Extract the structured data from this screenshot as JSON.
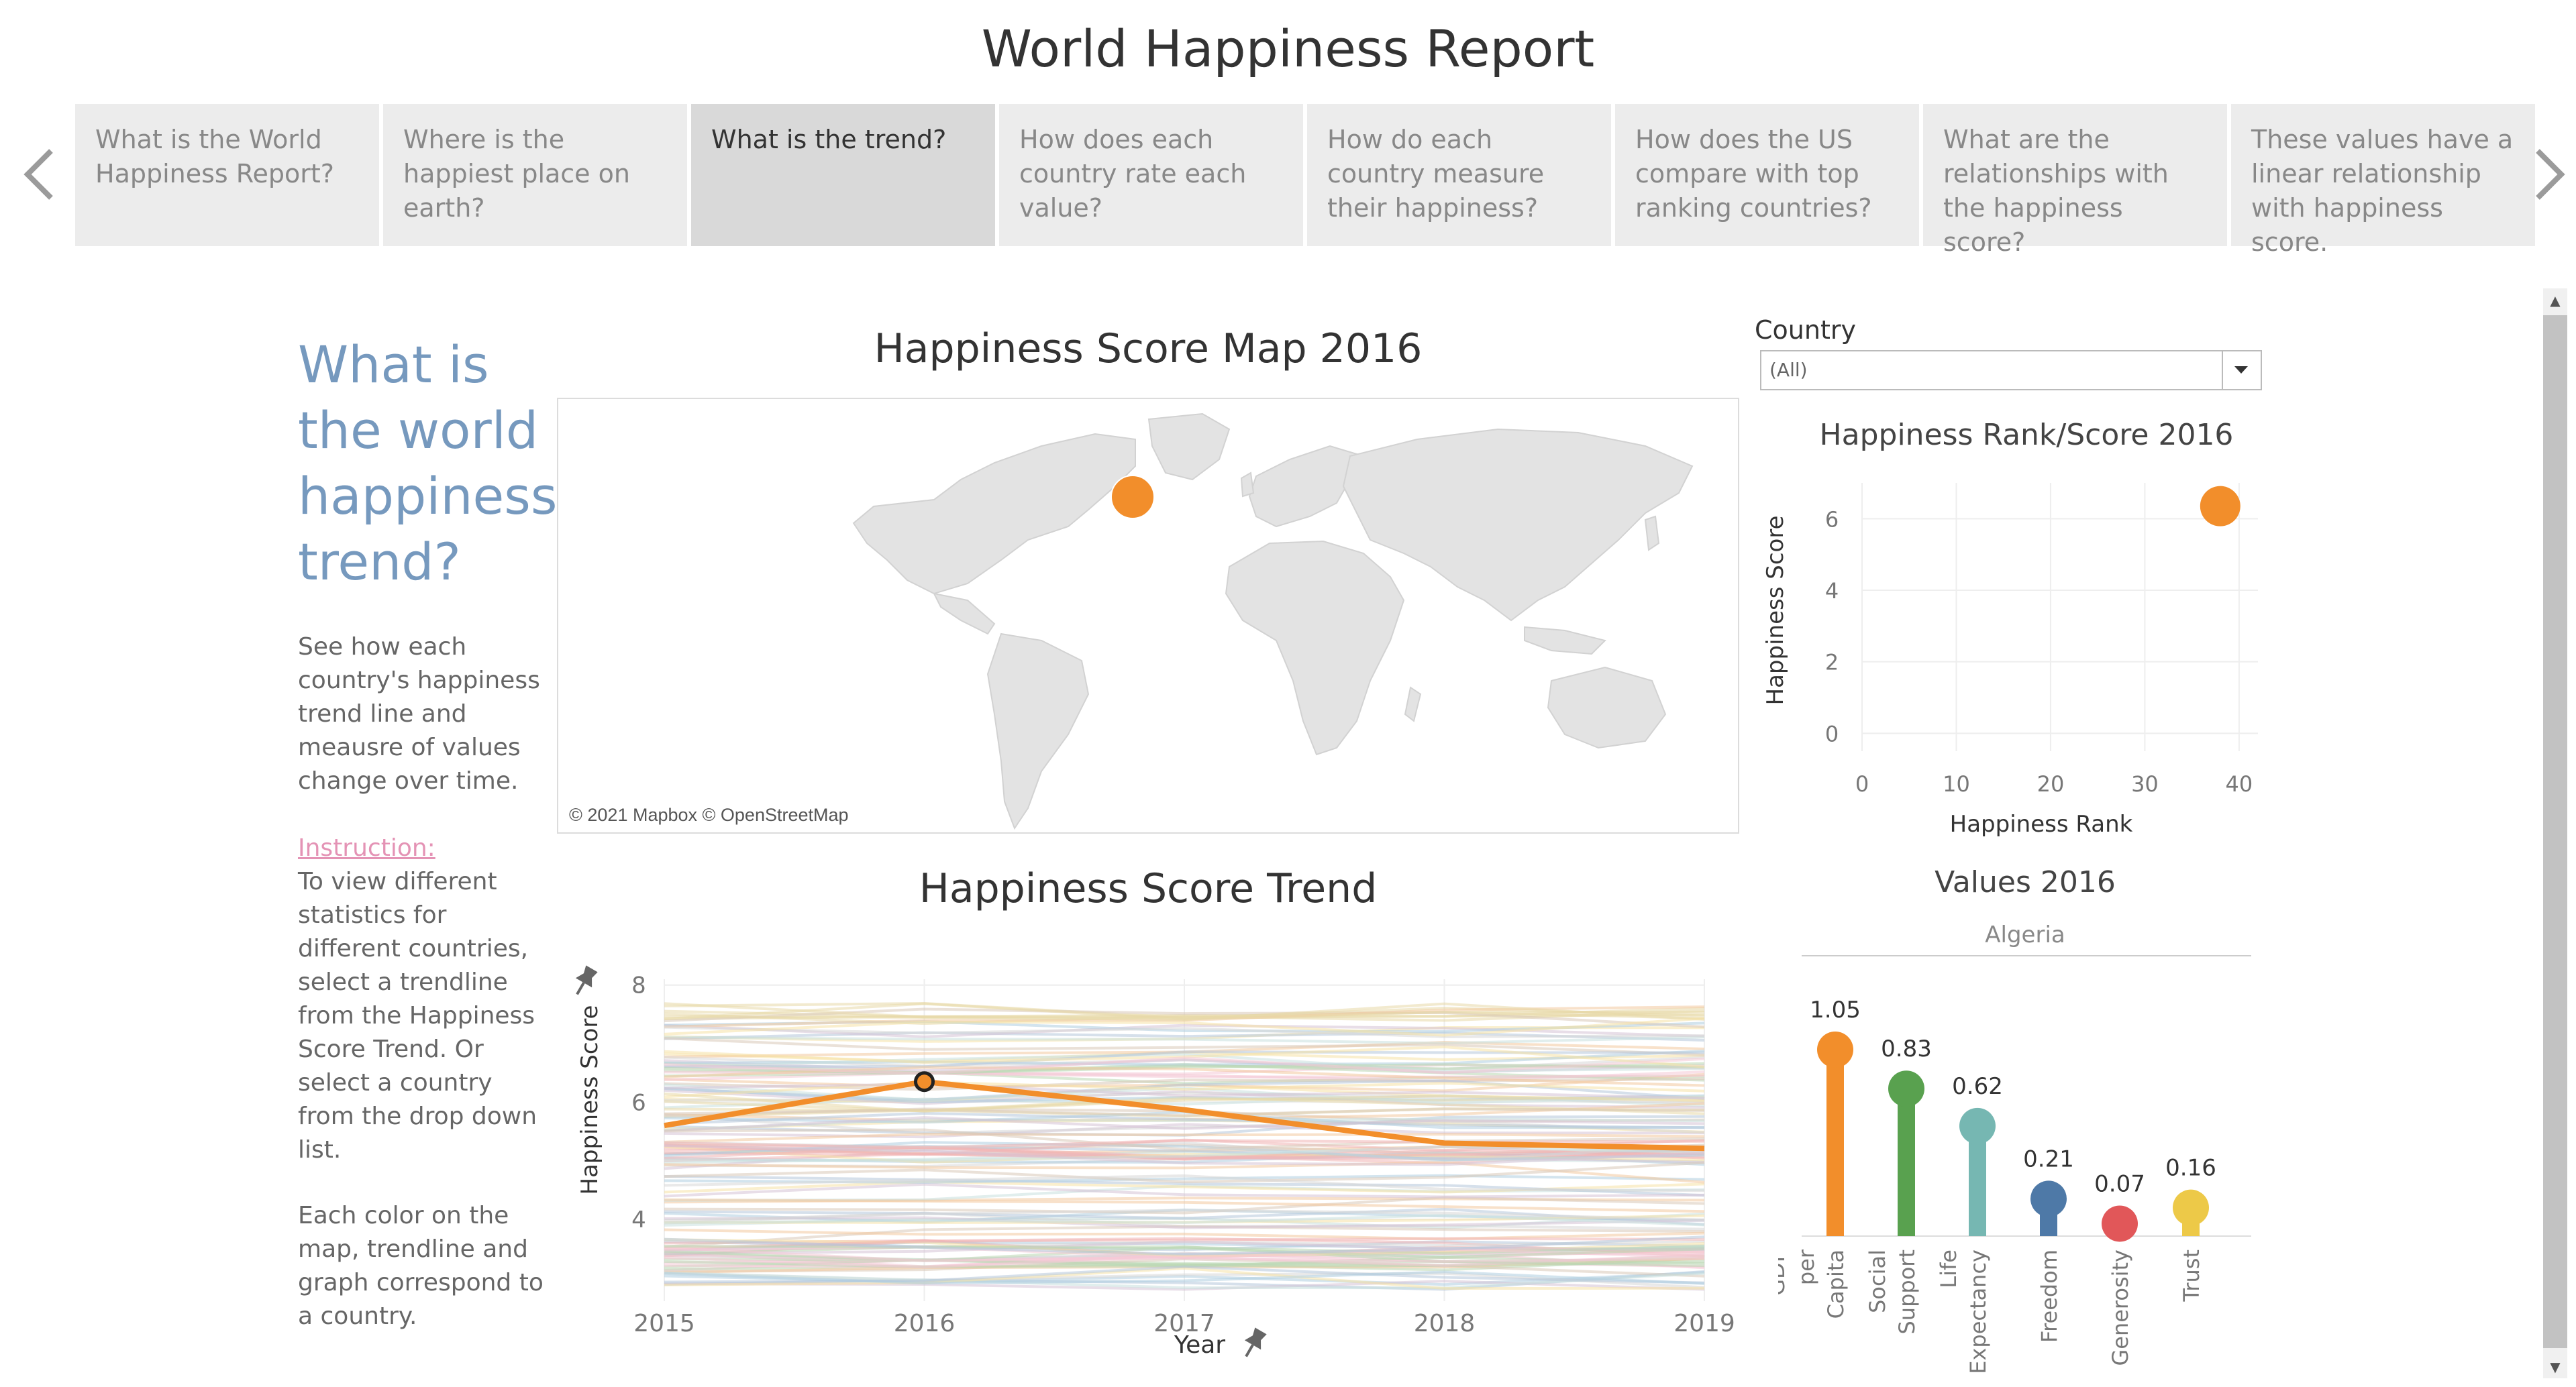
{
  "report": {
    "title": "World Happiness Report"
  },
  "nav": {
    "prev_icon": "chevron-left-icon",
    "next_icon": "chevron-right-icon"
  },
  "tabs": [
    {
      "label": "What is the World Happiness Report?"
    },
    {
      "label": "Where is the happiest place on earth?"
    },
    {
      "label": "What is the trend?"
    },
    {
      "label": "How does each country rate each value?"
    },
    {
      "label": "How do each country measure their happiness?"
    },
    {
      "label": "How does the US compare with top ranking countries?"
    },
    {
      "label": "What are the relationships with the happiness score?"
    },
    {
      "label": "These values have a linear relationship with happiness score."
    }
  ],
  "active_tab": 2,
  "sidebar": {
    "heading": "What is the world happiness trend?",
    "description": "See how each country's  happiness trend line and meausre of values change over time.",
    "instruction_label": "Instruction:",
    "instruction_text": "To view different statistics for different countries, select a trendline from the Happiness Score Trend. Or select a country from the drop down list.",
    "color_note": "Each color on the map, trendline and graph correspond to a country."
  },
  "map": {
    "title": "Happiness Score Map 2016",
    "credit": "© 2021 Mapbox © OpenStreetMap",
    "marker_color": "#f28e2b"
  },
  "filter": {
    "label": "Country",
    "value": "(All)"
  },
  "colors": {
    "accent": "#f28e2b",
    "sidebar_heading": "#7699be",
    "instruction": "#e493b5"
  },
  "chart_data": [
    {
      "type": "scatter",
      "title": "Happiness Rank/Score  2016",
      "xlabel": "Happiness Rank",
      "ylabel": "Happiness Score",
      "xlim": [
        0,
        42
      ],
      "ylim": [
        -0.5,
        7
      ],
      "xticks": [
        "0",
        "10",
        "20",
        "30",
        "40"
      ],
      "yticks": [
        "0",
        "2",
        "4",
        "6"
      ],
      "points": [
        {
          "x": 38,
          "y": 6.35,
          "label": "Algeria"
        }
      ],
      "grid": true
    },
    {
      "type": "line",
      "title": "Happiness Score Trend",
      "xlabel": "Year",
      "ylabel": "Happiness Score",
      "x": [
        2015,
        2016,
        2017,
        2018,
        2019
      ],
      "xticks": [
        "2015",
        "2016",
        "2017",
        "2018",
        "2019"
      ],
      "yticks": [
        "4",
        "6",
        "8"
      ],
      "ylim": [
        2.6,
        8.1
      ],
      "highlighted": {
        "name": "Algeria",
        "values": [
          5.6,
          6.35,
          5.87,
          5.3,
          5.21
        ],
        "selected_x": 2016
      },
      "background_series_note": "many faint lines, one per country, scores roughly 2.9-7.7"
    },
    {
      "type": "bar",
      "title": "Values  2016",
      "group_label": "Algeria",
      "categories": [
        "GDP per Capita",
        "Social Support",
        "Life Expectancy",
        "Freedom",
        "Generosity",
        "Trust"
      ],
      "values": [
        1.05,
        0.83,
        0.62,
        0.21,
        0.07,
        0.16
      ],
      "labels": [
        "1.05",
        "0.83",
        "0.62",
        "0.21",
        "0.07",
        "0.16"
      ],
      "colors": [
        "#f28e2b",
        "#59a14f",
        "#76b7b2",
        "#4e79a7",
        "#e15759",
        "#edc948"
      ],
      "style": "lollipop"
    }
  ]
}
